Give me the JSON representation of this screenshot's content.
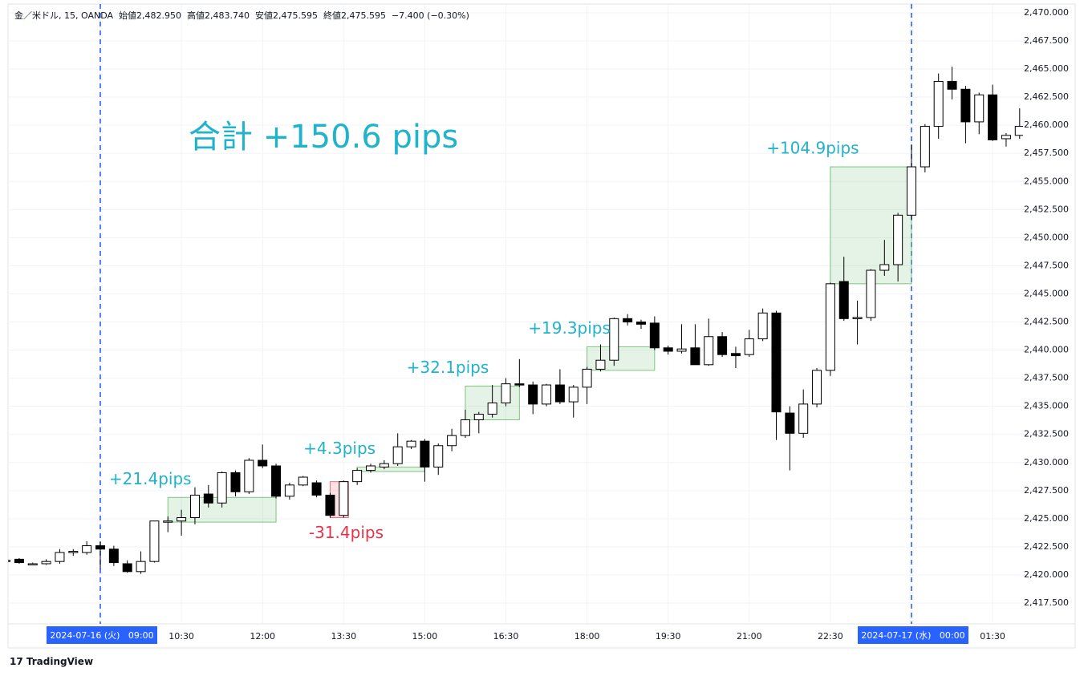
{
  "chart_data": {
    "type": "candlestick",
    "header": [
      "金／米ドル, 15, OANDA",
      "始値2,482.950",
      "高値2,483.740",
      "安値2,475.595",
      "終値2,475.595",
      "−7.400 (−0.30%)"
    ],
    "annotation": "合計 +150.6 pips",
    "watermark": "TradingView",
    "categories": [
      null,
      null,
      null,
      null,
      null,
      null,
      null,
      "2024-07-16 (火)   09:00",
      null,
      null,
      null,
      null,
      null,
      "10:30",
      null,
      null,
      null,
      null,
      null,
      "12:00",
      null,
      null,
      null,
      null,
      null,
      "13:30",
      null,
      null,
      null,
      null,
      null,
      "15:00",
      null,
      null,
      null,
      null,
      null,
      "16:30",
      null,
      null,
      null,
      null,
      null,
      "18:00",
      null,
      null,
      null,
      null,
      null,
      "19:30",
      null,
      null,
      null,
      null,
      null,
      "21:00",
      null,
      null,
      null,
      null,
      null,
      "22:30",
      null,
      null,
      null,
      null,
      null,
      "2024-07-17 (水)   00:00",
      null,
      null,
      null,
      null,
      null,
      "01:30",
      null,
      null
    ],
    "highlight_categories": [
      7,
      67
    ],
    "open": [
      2421.3,
      2421.4,
      2421.0,
      2421.0,
      2421.2,
      2422.0,
      2422.0,
      2422.6,
      2422.3,
      2421.0,
      2420.3,
      2421.2,
      2424.8,
      2424.8,
      2425.1,
      2427.2,
      2426.4,
      2429.1,
      2427.4,
      2430.2,
      2429.7,
      2427.0,
      2428.0,
      2428.2,
      2427.1,
      2425.3,
      2428.3,
      2429.3,
      2429.6,
      2429.9,
      2431.4,
      2431.9,
      2429.6,
      2431.5,
      2432.4,
      2433.8,
      2434.3,
      2435.3,
      2437.0,
      2436.9,
      2435.2,
      2436.9,
      2435.4,
      2436.7,
      2438.3,
      2439.1,
      2442.8,
      2442.5,
      2442.4,
      2440.2,
      2439.9,
      2440.2,
      2438.7,
      2441.2,
      2439.7,
      2439.6,
      2441.0,
      2443.3,
      2434.4,
      2432.6,
      2435.2,
      2438.2,
      2446.1,
      2442.9,
      2442.9,
      2447.1,
      2447.6,
      2452.0,
      2456.3,
      2459.9,
      2463.9,
      2463.2,
      2460.3,
      2462.7,
      2458.8,
      2459.1
    ],
    "high": [
      2421.5,
      2421.5,
      2421.1,
      2421.4,
      2422.3,
      2422.3,
      2423.0,
      2423.0,
      2422.6,
      2421.3,
      2422.1,
      2424.8,
      2425.2,
      2425.8,
      2427.8,
      2428.0,
      2429.2,
      2429.3,
      2430.4,
      2431.6,
      2429.9,
      2428.2,
      2428.8,
      2428.4,
      2427.3,
      2428.4,
      2429.5,
      2429.9,
      2430.2,
      2432.6,
      2432.0,
      2432.1,
      2431.7,
      2433.0,
      2434.7,
      2434.5,
      2436.9,
      2437.5,
      2439.2,
      2437.2,
      2437.0,
      2438.3,
      2436.9,
      2438.5,
      2440.5,
      2442.9,
      2443.2,
      2442.7,
      2443.0,
      2440.4,
      2442.3,
      2442.3,
      2442.8,
      2441.6,
      2440.3,
      2441.8,
      2443.7,
      2443.5,
      2435.0,
      2436.5,
      2438.4,
      2446.0,
      2448.3,
      2444.4,
      2447.2,
      2449.8,
      2452.2,
      2458.3,
      2460.1,
      2464.6,
      2465.2,
      2463.5,
      2462.9,
      2463.6,
      2459.3,
      2461.5
    ],
    "low": [
      2421.1,
      2421.0,
      2420.9,
      2420.9,
      2421.0,
      2421.7,
      2421.8,
      2420.5,
      2420.8,
      2420.2,
      2420.1,
      2421.1,
      2423.8,
      2423.5,
      2424.5,
      2426.0,
      2426.0,
      2427.0,
      2427.2,
      2429.5,
      2426.8,
      2426.7,
      2427.9,
      2426.9,
      2425.1,
      2425.1,
      2428.0,
      2429.1,
      2429.4,
      2429.7,
      2431.2,
      2428.3,
      2428.9,
      2431.0,
      2432.2,
      2432.6,
      2434.0,
      2435.0,
      2436.7,
      2434.3,
      2435.0,
      2435.2,
      2434.0,
      2435.2,
      2438.1,
      2438.6,
      2442.2,
      2441.9,
      2440.0,
      2439.6,
      2439.7,
      2438.7,
      2438.6,
      2439.4,
      2438.4,
      2439.4,
      2440.8,
      2432.0,
      2429.3,
      2432.2,
      2434.9,
      2437.7,
      2442.6,
      2440.5,
      2442.6,
      2446.6,
      2446.1,
      2451.6,
      2455.8,
      2458.8,
      2462.3,
      2458.4,
      2459.2,
      2458.6,
      2458.1,
      2458.8
    ],
    "close": [
      2421.3,
      2421.1,
      2421.0,
      2421.2,
      2422.0,
      2422.1,
      2422.6,
      2422.3,
      2421.1,
      2420.3,
      2421.2,
      2424.8,
      2424.8,
      2425.1,
      2427.1,
      2426.4,
      2429.1,
      2427.4,
      2430.2,
      2429.7,
      2427.0,
      2428.0,
      2428.7,
      2427.1,
      2425.3,
      2428.3,
      2429.3,
      2429.7,
      2429.9,
      2431.4,
      2431.9,
      2429.6,
      2431.5,
      2432.4,
      2433.8,
      2434.3,
      2435.3,
      2437.0,
      2436.9,
      2435.2,
      2436.9,
      2435.4,
      2436.7,
      2438.3,
      2439.1,
      2442.8,
      2442.5,
      2442.3,
      2440.2,
      2439.9,
      2440.1,
      2438.7,
      2441.2,
      2439.6,
      2439.5,
      2441.0,
      2443.3,
      2434.5,
      2432.6,
      2435.2,
      2438.2,
      2445.9,
      2442.8,
      2442.9,
      2447.1,
      2447.6,
      2452.0,
      2456.3,
      2459.9,
      2463.9,
      2463.2,
      2460.3,
      2462.7,
      2458.7,
      2459.1,
      2459.9
    ],
    "trades": [
      {
        "label": "+21.4pips",
        "from": 12,
        "to": 20,
        "top": 2426.9,
        "bottom": 2424.7,
        "color": "#4caf50",
        "label_color": "#1fb3cc"
      },
      {
        "label": "-31.4pips",
        "from": 24,
        "to": 25,
        "top": 2428.3,
        "bottom": 2425.1,
        "color": "#f23645",
        "label_color": "#e8324a"
      },
      {
        "label": "+4.3pips",
        "from": 26,
        "to": 31,
        "top": 2429.6,
        "bottom": 2429.2,
        "color": "#4caf50",
        "label_color": "#1fb3cc"
      },
      {
        "label": "+32.1pips",
        "from": 34,
        "to": 38,
        "top": 2436.8,
        "bottom": 2433.8,
        "color": "#4caf50",
        "label_color": "#1fb3cc"
      },
      {
        "label": "+19.3pips",
        "from": 43,
        "to": 48,
        "top": 2440.3,
        "bottom": 2438.2,
        "color": "#4caf50",
        "label_color": "#1fb3cc"
      },
      {
        "label": "+104.9pips",
        "from": 61,
        "to": 67,
        "top": 2456.3,
        "bottom": 2445.9,
        "color": "#4caf50",
        "label_color": "#1fb3cc"
      }
    ],
    "ylim": [
      2415.65,
      2470.78
    ],
    "yticks": [
      {
        "value": 2417.5,
        "label": "2,417.500"
      },
      {
        "value": 2420,
        "label": "2,420.000"
      },
      {
        "value": 2422.5,
        "label": "2,422.500"
      },
      {
        "value": 2425,
        "label": "2,425.000"
      },
      {
        "value": 2427.5,
        "label": "2,427.500"
      },
      {
        "value": 2430,
        "label": "2,430.000"
      },
      {
        "value": 2432.5,
        "label": "2,432.500"
      },
      {
        "value": 2435,
        "label": "2,435.000"
      },
      {
        "value": 2437.5,
        "label": "2,437.500"
      },
      {
        "value": 2440,
        "label": "2,440.000"
      },
      {
        "value": 2442.5,
        "label": "2,442.500"
      },
      {
        "value": 2445,
        "label": "2,445.000"
      },
      {
        "value": 2447.5,
        "label": "2,447.500"
      },
      {
        "value": 2450,
        "label": "2,450.000"
      },
      {
        "value": 2452.5,
        "label": "2,452.500"
      },
      {
        "value": 2455,
        "label": "2,455.000"
      },
      {
        "value": 2457.5,
        "label": "2,457.500"
      },
      {
        "value": 2460,
        "label": "2,460.000"
      },
      {
        "value": 2462.5,
        "label": "2,462.500"
      },
      {
        "value": 2465,
        "label": "2,465.000"
      },
      {
        "value": 2467.5,
        "label": "2,467.500"
      },
      {
        "value": 2470,
        "label": "2,470.000"
      }
    ],
    "grid": true,
    "up_color": "#ffffff",
    "down_color": "#000000"
  }
}
